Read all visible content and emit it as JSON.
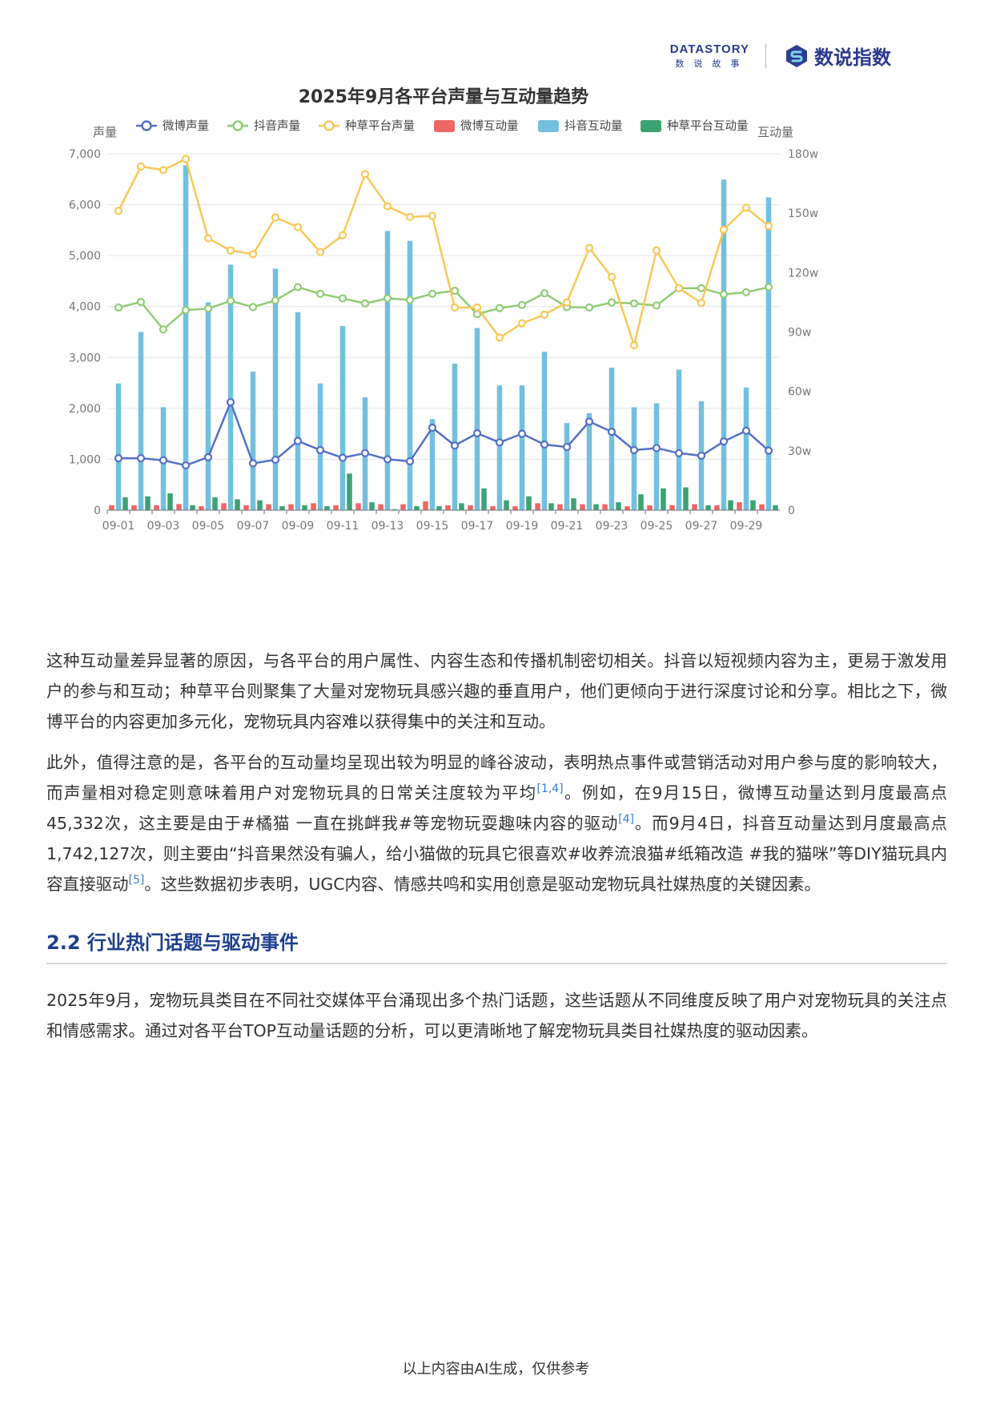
{
  "header": {
    "datastory_en": "DATASTORY",
    "datastory_cn": "数说故事",
    "brand_cn": "数说指数"
  },
  "chart_data": {
    "type": "bar",
    "title": "2025年9月各平台声量与互动量趋势",
    "ylabel_left": "声量",
    "ylabel_right": "互动量",
    "ylim_left": [
      0,
      7000
    ],
    "ylim_right": [
      0,
      180
    ],
    "yticks_left": [
      "0",
      "1,000",
      "2,000",
      "3,000",
      "4,000",
      "5,000",
      "6,000",
      "7,000"
    ],
    "yticks_right": [
      "0",
      "30w",
      "60w",
      "90w",
      "120w",
      "150w",
      "180w"
    ],
    "categories": [
      "09-01",
      "09-02",
      "09-03",
      "09-04",
      "09-05",
      "09-06",
      "09-07",
      "09-08",
      "09-09",
      "09-10",
      "09-11",
      "09-12",
      "09-13",
      "09-14",
      "09-15",
      "09-16",
      "09-17",
      "09-18",
      "09-19",
      "09-20",
      "09-21",
      "09-22",
      "09-23",
      "09-24",
      "09-25",
      "09-26",
      "09-27",
      "09-28",
      "09-29",
      "09-30"
    ],
    "xtick_labels": [
      "09-01",
      "09-03",
      "09-05",
      "09-07",
      "09-09",
      "09-11",
      "09-13",
      "09-15",
      "09-17",
      "09-19",
      "09-21",
      "09-23",
      "09-25",
      "09-27",
      "09-29"
    ],
    "legend_position": "top",
    "grid": true,
    "series": [
      {
        "name": "微博声量",
        "type": "line",
        "axis": "left",
        "color": "#5470c6",
        "values": [
          1020,
          1020,
          980,
          880,
          1040,
          2120,
          920,
          990,
          1360,
          1180,
          1030,
          1120,
          1000,
          960,
          1620,
          1270,
          1510,
          1330,
          1500,
          1290,
          1240,
          1740,
          1540,
          1180,
          1220,
          1120,
          1070,
          1350,
          1560,
          1170
        ]
      },
      {
        "name": "抖音声量",
        "type": "line",
        "axis": "left",
        "color": "#91cc75",
        "values": [
          3980,
          4090,
          3550,
          3930,
          3960,
          4110,
          3990,
          4120,
          4380,
          4250,
          4160,
          4060,
          4160,
          4130,
          4250,
          4310,
          3850,
          3970,
          4030,
          4260,
          3990,
          3980,
          4080,
          4060,
          4020,
          4360,
          4360,
          4240,
          4280,
          4380
        ]
      },
      {
        "name": "种草平台声量",
        "type": "line",
        "axis": "left",
        "color": "#fac858",
        "values": [
          5880,
          6750,
          6680,
          6900,
          5340,
          5100,
          5030,
          5750,
          5560,
          5070,
          5400,
          6600,
          5970,
          5760,
          5780,
          3980,
          3980,
          3390,
          3670,
          3840,
          4080,
          5150,
          4580,
          3240,
          5100,
          4360,
          4070,
          5510,
          5940,
          5580
        ]
      },
      {
        "name": "微博互动量",
        "type": "bar",
        "axis": "right",
        "color": "#ee6666",
        "values": [
          2.5,
          2.5,
          2.5,
          3.1,
          2.0,
          3.5,
          2.5,
          3.0,
          3.0,
          3.5,
          2.5,
          3.5,
          3.0,
          3.0,
          4.5,
          2.5,
          2.5,
          2.0,
          2.0,
          3.5,
          3.0,
          3.0,
          3.0,
          2.0,
          2.5,
          2.5,
          3.0,
          2.5,
          4.0,
          3.0
        ]
      },
      {
        "name": "抖音互动量",
        "type": "bar",
        "axis": "right",
        "color": "#73c0de",
        "values": [
          64,
          90,
          52,
          174.2,
          105,
          124,
          70,
          122,
          100,
          64,
          93,
          57,
          141,
          136,
          46,
          74,
          92,
          63,
          63,
          80,
          44,
          49,
          72,
          52,
          54,
          71,
          55,
          167,
          62,
          158
        ]
      },
      {
        "name": "种草平台互动量",
        "type": "bar",
        "axis": "right",
        "color": "#3ba272",
        "values": [
          6.5,
          7.0,
          8.5,
          2.5,
          6.5,
          5.5,
          5.0,
          2.0,
          2.5,
          2.0,
          18.5,
          4.0,
          0.5,
          2.0,
          2.0,
          3.5,
          11.0,
          5.0,
          7.0,
          3.5,
          6.0,
          3.0,
          4.0,
          8.0,
          11.0,
          11.5,
          2.5,
          5.0,
          5.0,
          2.5
        ]
      }
    ]
  },
  "body": {
    "p1": "这种互动量差异显著的原因，与各平台的用户属性、内容生态和传播机制密切相关。抖音以短视频内容为主，更易于激发用户的参与和互动；种草平台则聚集了大量对宠物玩具感兴趣的垂直用户，他们更倾向于进行深度讨论和分享。相比之下，微博平台的内容更加多元化，宠物玩具内容难以获得集中的关注和互动。",
    "p2_a": "此外，值得注意的是，各平台的互动量均呈现出较为明显的峰谷波动，表明热点事件或营销活动对用户参与度的影响较大，而声量相对稳定则意味着用户对宠物玩具的日常关注度较为平均",
    "p2_cite1": "[1,4]",
    "p2_b": "。例如，在9月15日，微博互动量达到月度最高点45,332次，这主要是由于#橘猫 一直在挑衅我#等宠物玩耍趣味内容的驱动",
    "p2_cite2": "[4]",
    "p2_c": "。而9月4日，抖音互动量达到月度最高点1,742,127次，则主要由“抖音果然没有骗人，给小猫做的玩具它很喜欢#收养流浪猫#纸箱改造 #我的猫咪”等DIY猫玩具内容直接驱动",
    "p2_cite3": "[5]",
    "p2_d": "。这些数据初步表明，UGC内容、情感共鸣和实用创意是驱动宠物玩具社媒热度的关键因素。",
    "section_title": "2.2 行业热门话题与驱动事件",
    "p3": "2025年9月，宠物玩具类目在不同社交媒体平台涌现出多个热门话题，这些话题从不同维度反映了用户对宠物玩具的关注点和情感需求。通过对各平台TOP互动量话题的分析，可以更清晰地了解宠物玩具类目社媒热度的驱动因素。"
  },
  "footer": {
    "text": "以上内容由AI生成，仅供参考"
  }
}
